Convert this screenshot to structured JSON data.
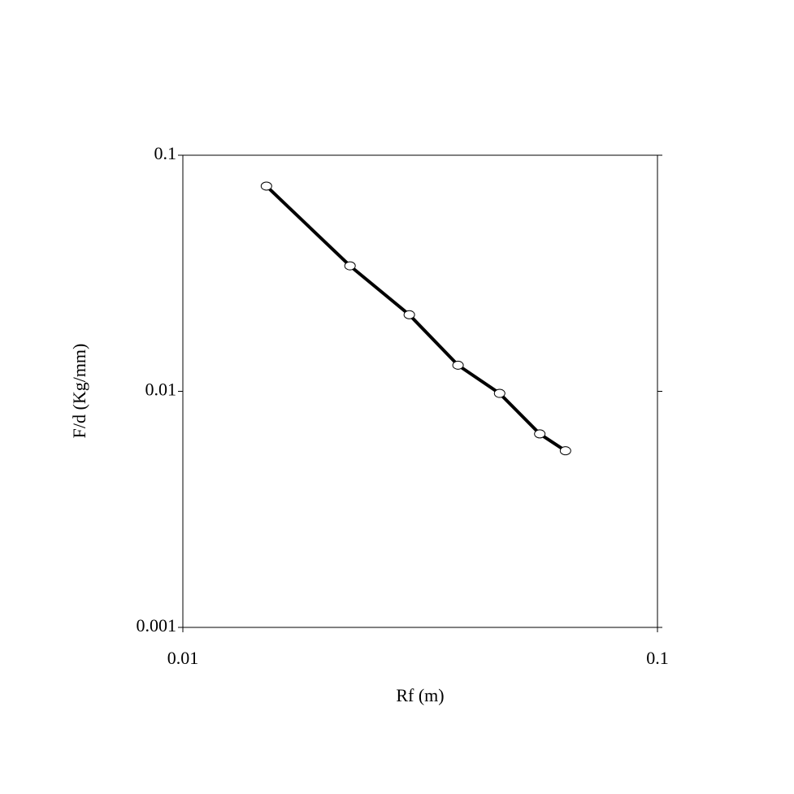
{
  "chart_data": {
    "type": "line",
    "xlabel": "Rf (m)",
    "ylabel": "F/d (Kg/mm)",
    "x": [
      0.015,
      0.0225,
      0.03,
      0.038,
      0.0465,
      0.0565,
      0.064
    ],
    "series": [
      {
        "color": "#000000",
        "values": [
          0.074,
          0.034,
          0.0211,
          0.0129,
          0.0098,
          0.0066,
          0.0056
        ]
      }
    ],
    "xlim": [
      0.01,
      0.1
    ],
    "ylim": [
      0.001,
      0.1
    ],
    "xticks": [
      0.01,
      0.1
    ],
    "yticks": [
      0.001,
      0.01,
      0.1
    ],
    "xscale": "log",
    "yscale": "log",
    "grid": false
  }
}
